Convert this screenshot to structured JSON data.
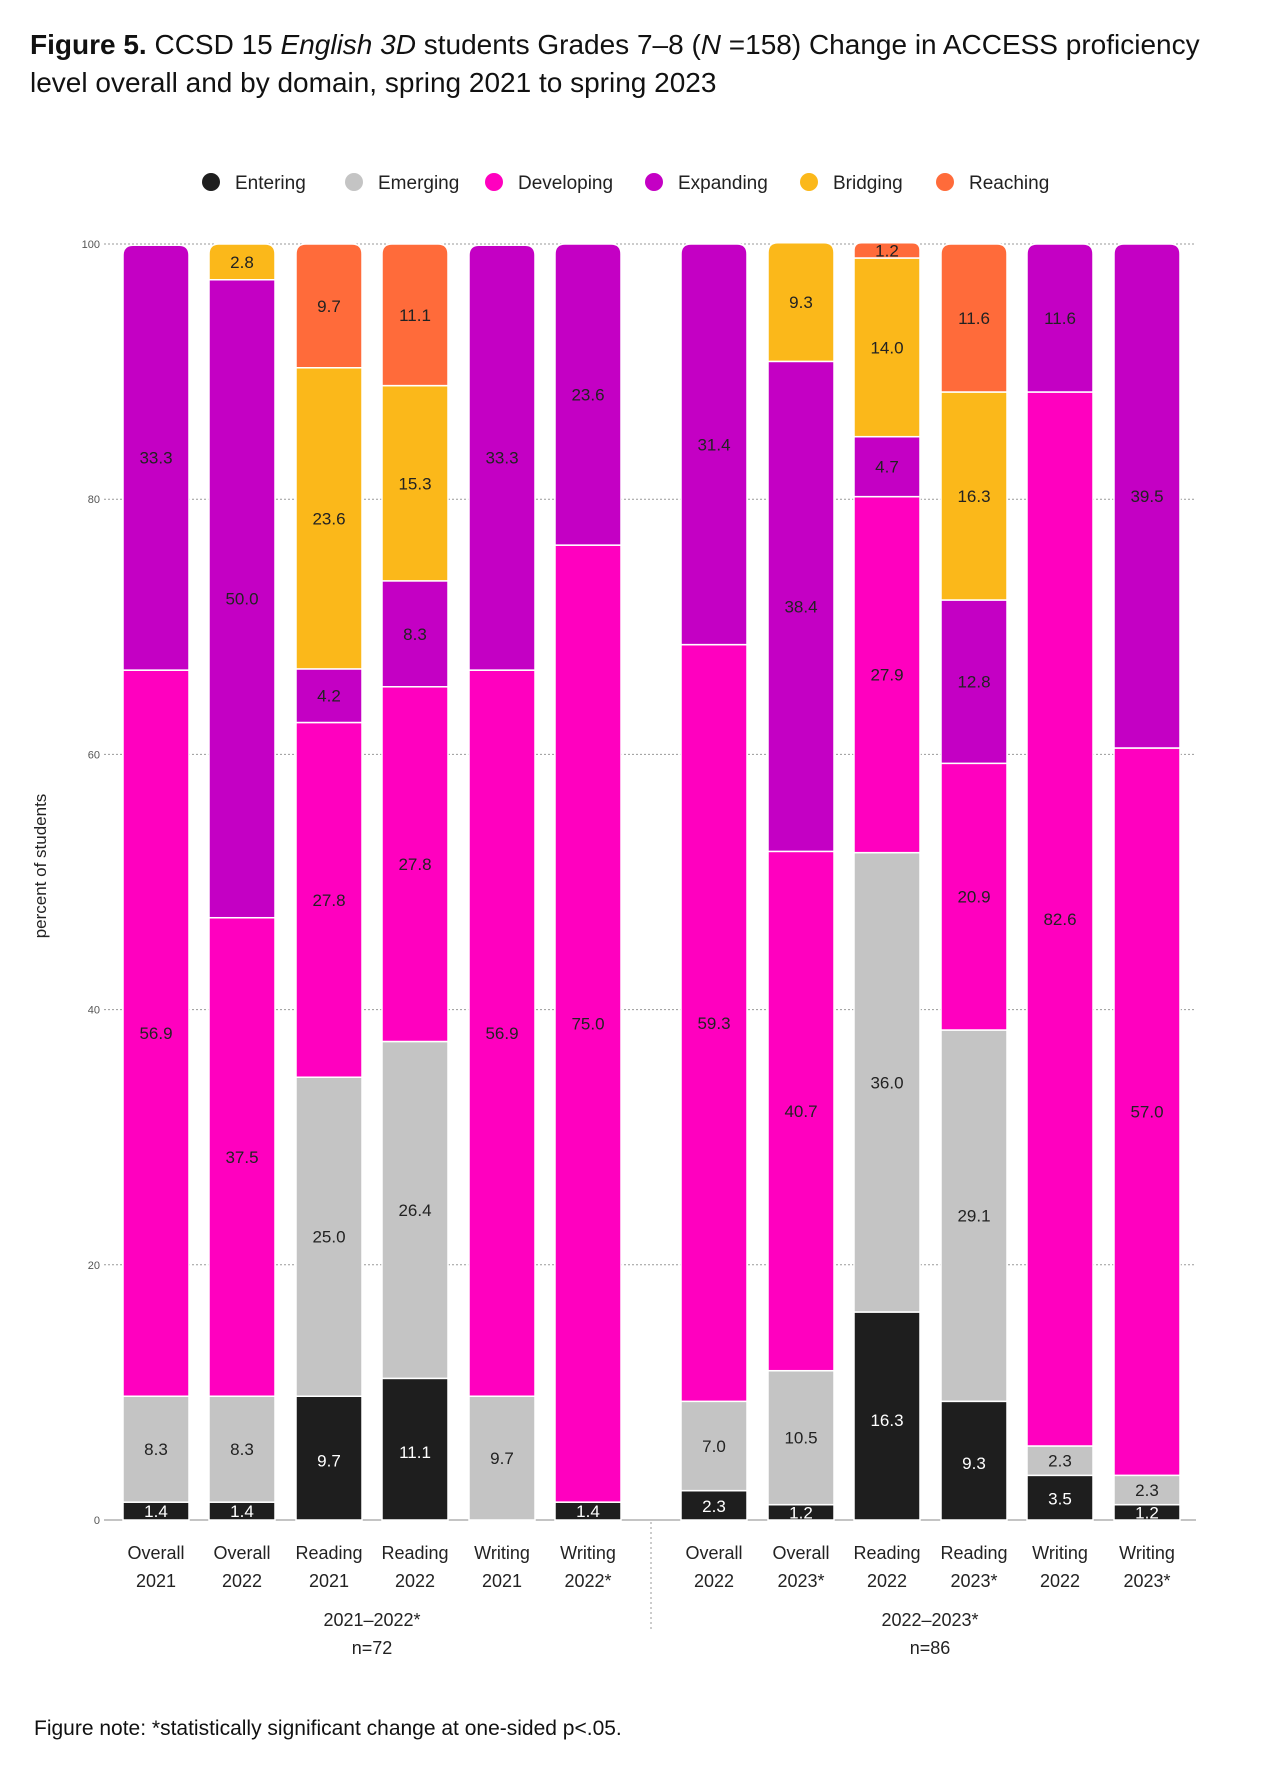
{
  "title": {
    "figure_label": "Figure 5.",
    "text_before_italic": " CCSD 15 ",
    "italic_program": "English 3D",
    "text_middle": " students Grades 7–8 (",
    "italic_n": "N",
    "text_after": " =158) Change in ACCESS proficiency level overall and by domain, spring 2021 to spring 2023"
  },
  "note": "Figure note: *statistically significant change at one-sided p<.05.",
  "chart_data": {
    "type": "bar",
    "stacked": true,
    "ylabel": "percent of students",
    "ylim": [
      0,
      100
    ],
    "yticks": [
      0,
      20,
      40,
      60,
      80,
      100
    ],
    "grid": true,
    "legend_position": "top",
    "levels": [
      {
        "name": "Entering",
        "color": "#1e1e1e",
        "text_color": "#ffffff"
      },
      {
        "name": "Emerging",
        "color": "#c4c4c4",
        "text_color": "#222222"
      },
      {
        "name": "Developing",
        "color": "#ff00bf",
        "text_color": "#222222"
      },
      {
        "name": "Expanding",
        "color": "#c400c4",
        "text_color": "#222222"
      },
      {
        "name": "Bridging",
        "color": "#fbb81a",
        "text_color": "#222222"
      },
      {
        "name": "Reaching",
        "color": "#ff6b3a",
        "text_color": "#222222"
      }
    ],
    "groups": [
      {
        "label": "2021–2022*",
        "sublabel": "n=72",
        "bar_count": 6
      },
      {
        "label": "2022–2023*",
        "sublabel": "n=86",
        "bar_count": 6
      }
    ],
    "bars": [
      {
        "line1": "Overall",
        "line2": "2021",
        "values": [
          1.4,
          8.3,
          56.9,
          33.3,
          0,
          0
        ],
        "labels": [
          "1.4",
          "8.3",
          "56.9",
          "33.3",
          "",
          ""
        ]
      },
      {
        "line1": "Overall",
        "line2": "2022",
        "values": [
          1.4,
          8.3,
          37.5,
          50.0,
          2.8,
          0
        ],
        "labels": [
          "1.4",
          "8.3",
          "37.5",
          "50.0",
          "2.8",
          ""
        ]
      },
      {
        "line1": "Reading",
        "line2": "2021",
        "values": [
          9.7,
          25.0,
          27.8,
          4.2,
          23.6,
          9.7
        ],
        "labels": [
          "9.7",
          "25.0",
          "27.8",
          "4.2",
          "23.6",
          "9.7"
        ]
      },
      {
        "line1": "Reading",
        "line2": "2022",
        "values": [
          11.1,
          26.4,
          27.8,
          8.3,
          15.3,
          11.1
        ],
        "labels": [
          "11.1",
          "26.4",
          "27.8",
          "8.3",
          "15.3",
          "11.1"
        ]
      },
      {
        "line1": "Writing",
        "line2": "2021",
        "values": [
          0,
          9.7,
          56.9,
          33.3,
          0,
          0
        ],
        "labels": [
          "",
          "9.7",
          "56.9",
          "33.3",
          "",
          ""
        ]
      },
      {
        "line1": "Writing",
        "line2": "2022*",
        "values": [
          1.4,
          0,
          75.0,
          23.6,
          0,
          0
        ],
        "labels": [
          "1.4",
          "",
          "75.0",
          "23.6",
          "",
          ""
        ]
      },
      {
        "line1": "Overall",
        "line2": "2022",
        "values": [
          2.3,
          7.0,
          59.3,
          31.4,
          0,
          0
        ],
        "labels": [
          "2.3",
          "7.0",
          "59.3",
          "31.4",
          "",
          ""
        ]
      },
      {
        "line1": "Overall",
        "line2": "2023*",
        "values": [
          1.2,
          10.5,
          40.7,
          38.4,
          9.3,
          0
        ],
        "labels": [
          "1.2",
          "10.5",
          "40.7",
          "38.4",
          "9.3",
          ""
        ]
      },
      {
        "line1": "Reading",
        "line2": "2022",
        "values": [
          16.3,
          36.0,
          27.9,
          4.7,
          14.0,
          1.2
        ],
        "labels": [
          "16.3",
          "36.0",
          "27.9",
          "4.7",
          "14.0",
          "1.2"
        ]
      },
      {
        "line1": "Reading",
        "line2": "2023*",
        "values": [
          9.3,
          29.1,
          20.9,
          12.8,
          16.3,
          11.6
        ],
        "labels": [
          "9.3",
          "29.1",
          "20.9",
          "12.8",
          "16.3",
          "11.6"
        ]
      },
      {
        "line1": "Writing",
        "line2": "2022",
        "values": [
          3.5,
          2.3,
          82.6,
          11.6,
          0,
          0
        ],
        "labels": [
          "3.5",
          "2.3",
          "82.6",
          "11.6",
          "",
          ""
        ]
      },
      {
        "line1": "Writing",
        "line2": "2023*",
        "values": [
          1.2,
          2.3,
          57.0,
          39.5,
          0,
          0
        ],
        "labels": [
          "1.2",
          "2.3",
          "57.0",
          "39.5",
          "",
          ""
        ]
      }
    ]
  }
}
